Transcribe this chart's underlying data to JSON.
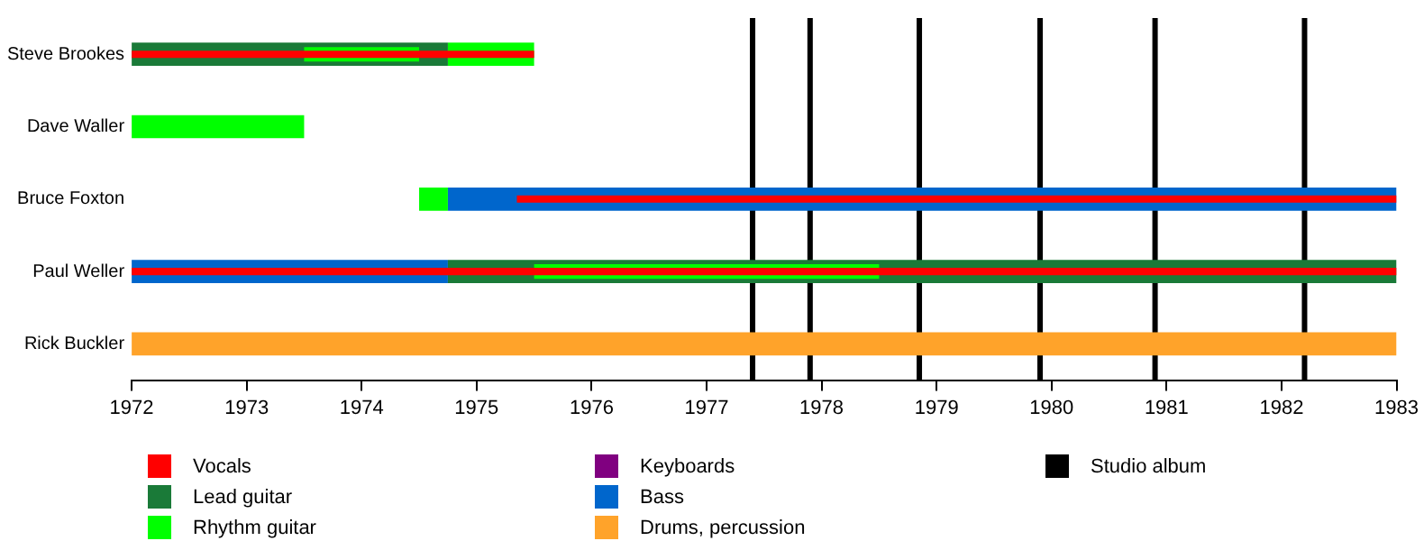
{
  "chart_data": {
    "type": "bar",
    "orientation": "horizontal",
    "categories": [
      "Steve Brookes",
      "Dave Waller",
      "Bruce Foxton",
      "Paul Weller",
      "Rick Buckler"
    ],
    "xlim": [
      1972,
      1983
    ],
    "xticks": [
      1972,
      1973,
      1974,
      1975,
      1976,
      1977,
      1978,
      1979,
      1980,
      1981,
      1982,
      1983
    ],
    "grid": false,
    "legend": "bottom",
    "series": [
      {
        "name": "Vocals",
        "color": "#ff0000",
        "base": [
          1972,
          null,
          1975.35,
          1972,
          null
        ],
        "values": [
          3.5,
          null,
          7.65,
          11,
          null
        ]
      },
      {
        "name": "Lead guitar",
        "color": "#1a7a38",
        "base": [
          1972,
          null,
          null,
          1974.75,
          null
        ],
        "values": [
          2.75,
          null,
          null,
          8.25,
          null
        ]
      },
      {
        "name": "Rhythm guitar",
        "color": "#00ff00",
        "base": [
          1974.75,
          1972,
          1974.5,
          null,
          null
        ],
        "values": [
          0.75,
          1.5,
          0.25,
          null,
          null
        ]
      },
      {
        "color": "#00ff00",
        "base": [
          1973.5,
          null,
          null,
          1975.5,
          null
        ],
        "values": [
          1,
          null,
          null,
          3,
          null
        ]
      },
      {
        "name": "Keyboards",
        "color": "#800080",
        "base": [
          null,
          null,
          null,
          null,
          null
        ],
        "values": [
          null,
          null,
          null,
          null,
          null
        ]
      },
      {
        "name": "Bass",
        "color": "#0066cc",
        "base": [
          null,
          null,
          1974.75,
          1972,
          null
        ],
        "values": [
          null,
          null,
          8.25,
          2.75,
          null
        ]
      },
      {
        "name": "Drums, percussion",
        "color": "#ffa32a",
        "base": [
          null,
          null,
          null,
          null,
          1972
        ],
        "values": [
          null,
          null,
          null,
          null,
          11
        ]
      }
    ],
    "ref_lines": [
      {
        "axis": "x",
        "value": 1977.4,
        "label": "Studio album",
        "color": "#000000"
      },
      {
        "axis": "x",
        "value": 1977.9,
        "color": "#000000"
      },
      {
        "axis": "x",
        "value": 1978.85,
        "color": "#000000"
      },
      {
        "axis": "x",
        "value": 1979.9,
        "color": "#000000"
      },
      {
        "axis": "x",
        "value": 1980.9,
        "color": "#000000"
      },
      {
        "axis": "x",
        "value": 1982.2,
        "color": "#000000"
      }
    ]
  }
}
